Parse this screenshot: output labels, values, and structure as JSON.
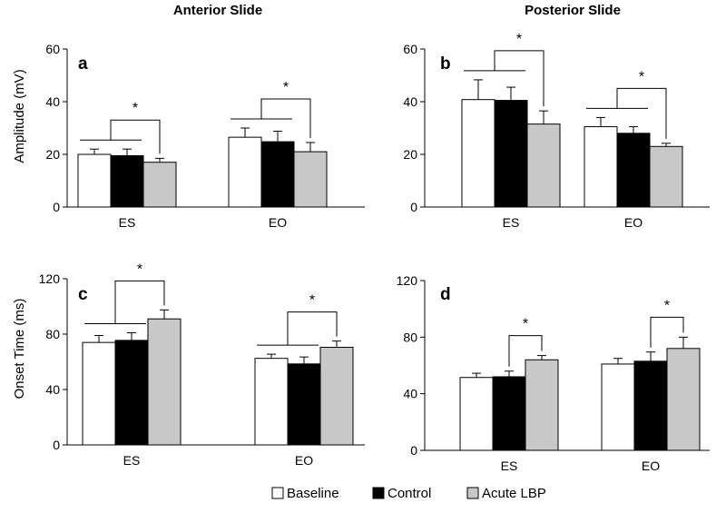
{
  "column_titles": [
    "Anterior Slide",
    "Posterior Slide"
  ],
  "row_ylabels": [
    "Amplitude (mV)",
    "Onset Time (ms)"
  ],
  "legend": {
    "placement": "bottom-right",
    "items": [
      {
        "label": "Baseline",
        "color": "#ffffff"
      },
      {
        "label": "Control",
        "color": "#000000"
      },
      {
        "label": "Acute LBP",
        "color": "#c8c8c8"
      }
    ]
  },
  "chart_data": [
    {
      "type": "bar",
      "panel_label": "a",
      "categories": [
        "ES",
        "EO"
      ],
      "ylim": [
        0,
        60
      ],
      "yticks": [
        0,
        20,
        40,
        60
      ],
      "series": [
        {
          "name": "Baseline",
          "color": "#ffffff",
          "values": [
            20,
            26.5
          ],
          "errors": [
            2,
            3.5
          ]
        },
        {
          "name": "Control",
          "color": "#000000",
          "values": [
            19.5,
            24.8
          ],
          "errors": [
            2.5,
            4
          ]
        },
        {
          "name": "Acute LBP",
          "color": "#c8c8c8",
          "values": [
            17,
            21
          ],
          "errors": [
            1.5,
            3.5
          ]
        }
      ],
      "significance": [
        {
          "category": "ES",
          "style": "groups",
          "label": "*"
        },
        {
          "category": "EO",
          "style": "groups",
          "label": "*"
        }
      ]
    },
    {
      "type": "bar",
      "panel_label": "b",
      "categories": [
        "ES",
        "EO"
      ],
      "ylim": [
        0,
        60
      ],
      "yticks": [
        0,
        20,
        40,
        60
      ],
      "series": [
        {
          "name": "Baseline",
          "color": "#ffffff",
          "values": [
            40.8,
            30.5
          ],
          "errors": [
            7.5,
            3.5
          ]
        },
        {
          "name": "Control",
          "color": "#000000",
          "values": [
            40.5,
            28
          ],
          "errors": [
            5,
            2.5
          ]
        },
        {
          "name": "Acute LBP",
          "color": "#c8c8c8",
          "values": [
            31.5,
            23
          ],
          "errors": [
            5,
            1.2
          ]
        }
      ],
      "significance": [
        {
          "category": "ES",
          "style": "groups",
          "label": "*"
        },
        {
          "category": "EO",
          "style": "groups",
          "label": "*"
        }
      ]
    },
    {
      "type": "bar",
      "panel_label": "c",
      "categories": [
        "ES",
        "EO"
      ],
      "ylim": [
        0,
        120
      ],
      "yticks": [
        0,
        40,
        80,
        120
      ],
      "series": [
        {
          "name": "Baseline",
          "color": "#ffffff",
          "values": [
            74,
            62.5
          ],
          "errors": [
            5,
            3
          ]
        },
        {
          "name": "Control",
          "color": "#000000",
          "values": [
            75.5,
            58.5
          ],
          "errors": [
            5.5,
            5
          ]
        },
        {
          "name": "Acute LBP",
          "color": "#c8c8c8",
          "values": [
            91,
            70.5
          ],
          "errors": [
            6.5,
            4.5
          ]
        }
      ],
      "significance": [
        {
          "category": "ES",
          "style": "groups",
          "label": "*"
        },
        {
          "category": "EO",
          "style": "groups",
          "label": "*"
        }
      ]
    },
    {
      "type": "bar",
      "panel_label": "d",
      "categories": [
        "ES",
        "EO"
      ],
      "ylim": [
        0,
        120
      ],
      "yticks": [
        0,
        40,
        80,
        120
      ],
      "series": [
        {
          "name": "Baseline",
          "color": "#ffffff",
          "values": [
            51.5,
            61
          ],
          "errors": [
            3,
            4
          ]
        },
        {
          "name": "Control",
          "color": "#000000",
          "values": [
            52,
            63
          ],
          "errors": [
            4,
            6.5
          ]
        },
        {
          "name": "Acute LBP",
          "color": "#c8c8c8",
          "values": [
            64,
            72
          ],
          "errors": [
            3,
            8
          ]
        }
      ],
      "significance": [
        {
          "category": "ES",
          "style": "pair",
          "label": "*"
        },
        {
          "category": "EO",
          "style": "pair",
          "label": "*"
        }
      ]
    }
  ]
}
